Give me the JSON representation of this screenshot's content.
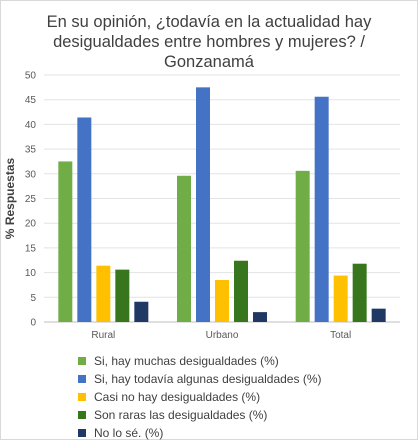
{
  "chart_data": {
    "type": "bar",
    "title_lines": [
      "En su opinión, ¿todavía en la actualidad hay",
      "desigualdades entre hombres y mujeres? /",
      "Gonzanamá"
    ],
    "ylabel": "% Respuestas",
    "xlabel": "",
    "ylim": [
      0,
      50
    ],
    "yticks": [
      0,
      5,
      10,
      15,
      20,
      25,
      30,
      35,
      40,
      45,
      50
    ],
    "categories": [
      "Rural",
      "Urbano",
      "Total"
    ],
    "series": [
      {
        "name": "Si, hay muchas desigualdades (%)",
        "color": "#70ad47",
        "values": [
          32.5,
          29.6,
          30.6
        ]
      },
      {
        "name": "Si, hay todavía algunas desigualdades (%)",
        "color": "#4472c4",
        "values": [
          41.4,
          47.5,
          45.6
        ]
      },
      {
        "name": "Casi no hay desigualdades (%)",
        "color": "#ffc000",
        "values": [
          11.4,
          8.5,
          9.4
        ]
      },
      {
        "name": "Son raras las desigualdades (%)",
        "color": "#38761d",
        "values": [
          10.6,
          12.4,
          11.8
        ]
      },
      {
        "name": "No lo sé. (%)",
        "color": "#1f3864",
        "values": [
          4.1,
          2.0,
          2.7
        ]
      }
    ],
    "grid": true,
    "legend_position": "bottom"
  }
}
